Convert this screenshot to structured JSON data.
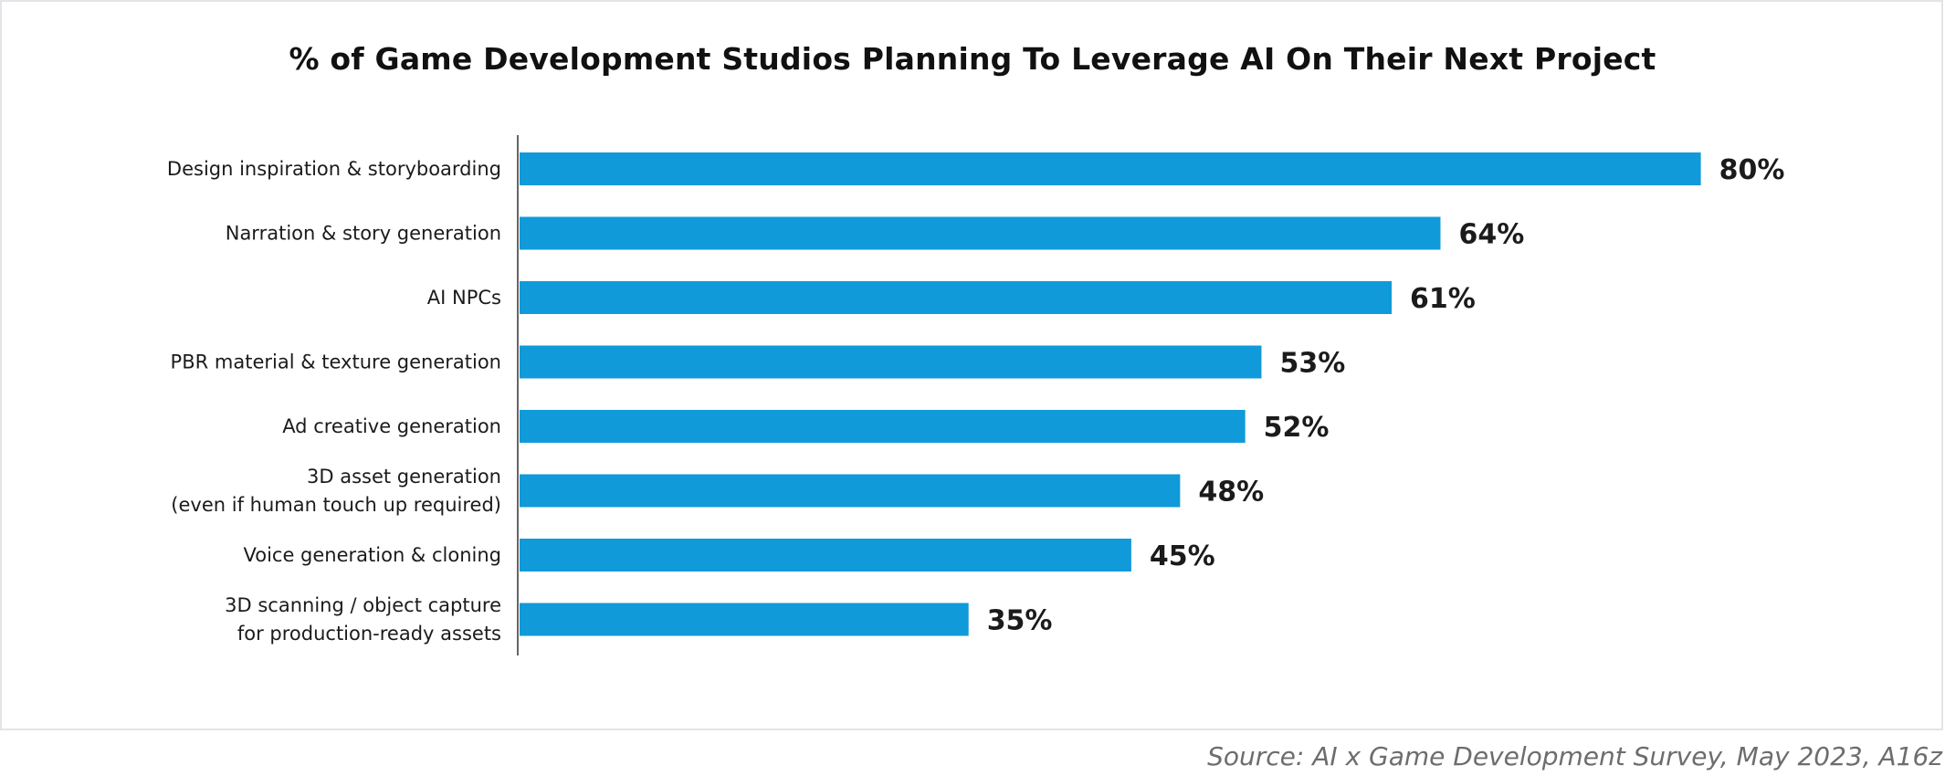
{
  "chart_data": {
    "type": "bar",
    "orientation": "horizontal",
    "title": "% of Game Development Studios Planning To Leverage AI On Their Next Project",
    "categories": [
      [
        "Design inspiration & storyboarding"
      ],
      [
        "Narration & story generation"
      ],
      [
        "AI NPCs"
      ],
      [
        "PBR material & texture generation"
      ],
      [
        "Ad creative generation"
      ],
      [
        "3D asset generation",
        "(even if human touch up required)"
      ],
      [
        "Voice generation & cloning"
      ],
      [
        "3D scanning / object capture",
        "for production-ready assets"
      ]
    ],
    "values": [
      80,
      64,
      61,
      53,
      52,
      48,
      45,
      35
    ],
    "value_labels": [
      "80%",
      "64%",
      "61%",
      "53%",
      "52%",
      "48%",
      "45%",
      "35%"
    ],
    "xlabel": "",
    "ylabel": "",
    "unit": "%",
    "grid": false,
    "legend": "none",
    "bar_color": "#119ad9"
  },
  "source": "Source: AI x Game Development Survey, May 2023, A16z"
}
